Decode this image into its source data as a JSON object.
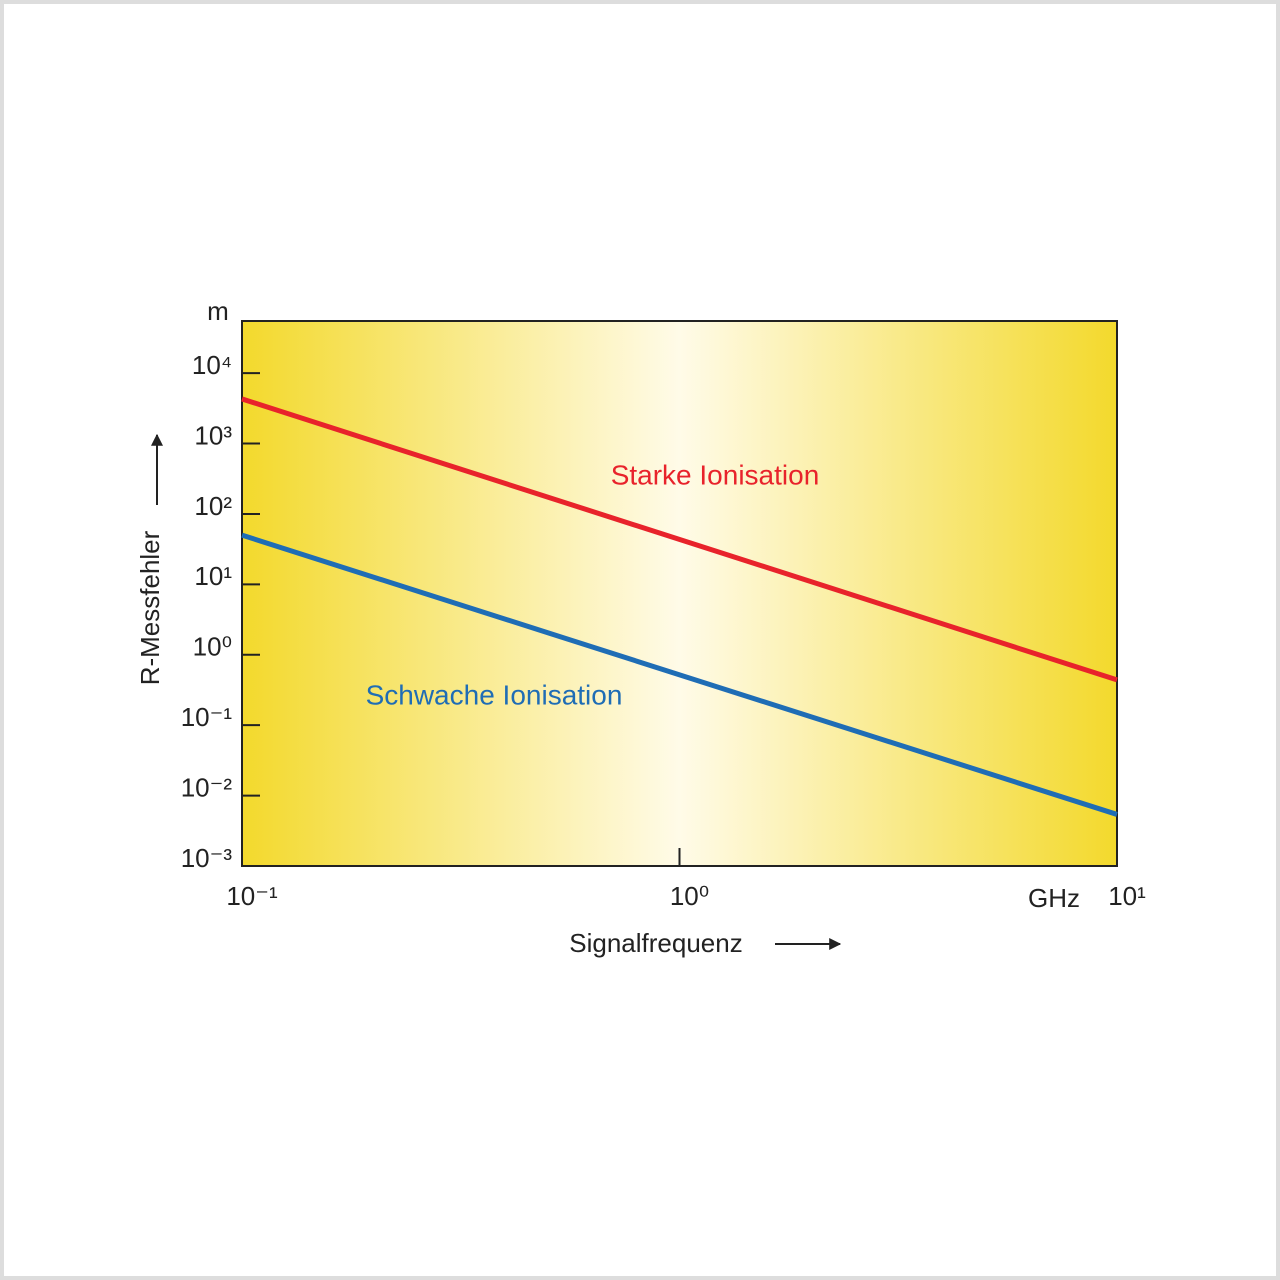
{
  "chart_data": {
    "type": "line",
    "x_label": "Signalfrequenz",
    "y_label": "R-Messfehler",
    "x_unit": "GHz",
    "y_unit": "m",
    "log_x": true,
    "log_y": true,
    "x": [
      0.1,
      10
    ],
    "xlim": [
      0.1,
      10
    ],
    "xticks": [
      {
        "value": 0.1,
        "label": "10⁻¹"
      },
      {
        "value": 1,
        "label": "10⁰"
      },
      {
        "value": 10,
        "label": "10¹"
      }
    ],
    "ylim": [
      0.001,
      55000
    ],
    "yticks": [
      {
        "value": 0.001,
        "label": "10⁻³"
      },
      {
        "value": 0.01,
        "label": "10⁻²"
      },
      {
        "value": 0.1,
        "label": "10⁻¹"
      },
      {
        "value": 1,
        "label": "10⁰"
      },
      {
        "value": 10,
        "label": "10¹"
      },
      {
        "value": 100,
        "label": "10²"
      },
      {
        "value": 1000,
        "label": "10³"
      },
      {
        "value": 10000,
        "label": "10⁴"
      }
    ],
    "series": [
      {
        "name": "Starke Ionisation",
        "color": "#e8232b",
        "values": [
          4300,
          0.44
        ]
      },
      {
        "name": "Schwache Ionisation",
        "color": "#1f6db5",
        "values": [
          50,
          0.0054
        ]
      }
    ]
  }
}
